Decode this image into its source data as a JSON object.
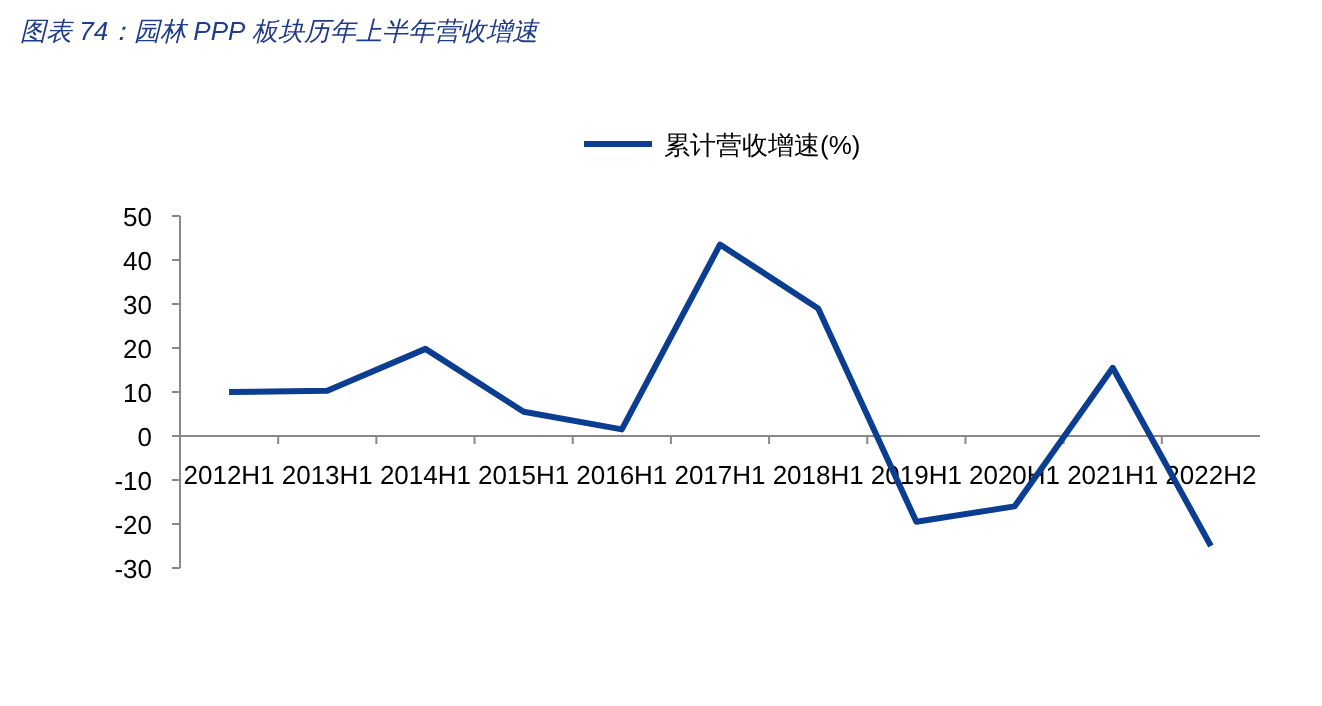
{
  "chart_data": {
    "type": "line",
    "title": "图表 74：园林 PPP 板块历年上半年营收增速",
    "categories": [
      "2012H1",
      "2013H1",
      "2014H1",
      "2015H1",
      "2016H1",
      "2017H1",
      "2018H1",
      "2019H1",
      "2020H1",
      "2021H1",
      "2022H2"
    ],
    "series": [
      {
        "name": "累计营收增速(%)",
        "color": "#0b3d91",
        "values": [
          10,
          10.3,
          19.8,
          5.5,
          1.5,
          43.5,
          29,
          -19.5,
          -16,
          15.5,
          -25
        ]
      }
    ],
    "ylim": [
      -30,
      50
    ],
    "yticks": [
      -30,
      -20,
      -10,
      0,
      10,
      20,
      30,
      40,
      50
    ],
    "grid": false,
    "legend": "top",
    "marker": "none",
    "line_style": "solid"
  }
}
